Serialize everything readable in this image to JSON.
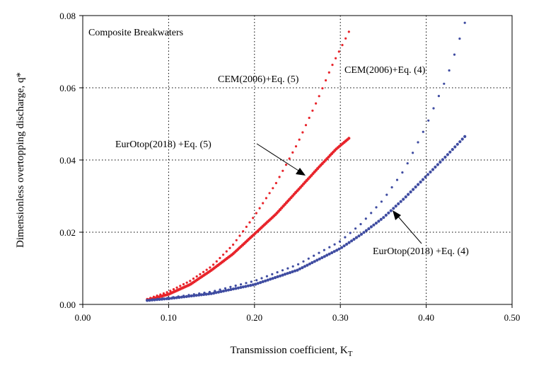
{
  "chart_data": {
    "type": "scatter",
    "title": "Composite Breakwaters",
    "xlabel": "Transmission coefficient, K",
    "xlabel_subscript": "T",
    "ylabel": "Dimensionless overtopping discharge, q*",
    "xlim": [
      0.0,
      0.5
    ],
    "ylim": [
      0.0,
      0.08
    ],
    "x_ticks": [
      "0.00",
      "0.10",
      "0.20",
      "0.30",
      "0.40",
      "0.50"
    ],
    "y_ticks": [
      "0.00",
      "0.02",
      "0.04",
      "0.06",
      "0.08"
    ],
    "grid": true,
    "colors": {
      "red": "#e8242b",
      "blue": "#3f4ca1"
    },
    "series": [
      {
        "name": "CEM(2006)+Eq. (5)",
        "color": "#e8242b",
        "style": "sparse-dots",
        "x": [
          0.075,
          0.1,
          0.125,
          0.15,
          0.175,
          0.2,
          0.225,
          0.25,
          0.275,
          0.29,
          0.31
        ],
        "y": [
          0.0015,
          0.0035,
          0.0065,
          0.0105,
          0.0165,
          0.0245,
          0.0335,
          0.0445,
          0.0575,
          0.066,
          0.0755
        ]
      },
      {
        "name": "EurOtop(2018) +Eq. (5)",
        "color": "#e8242b",
        "style": "dense-dots",
        "x": [
          0.075,
          0.1,
          0.125,
          0.15,
          0.175,
          0.2,
          0.225,
          0.25,
          0.275,
          0.295,
          0.31
        ],
        "y": [
          0.0012,
          0.0028,
          0.0055,
          0.0095,
          0.014,
          0.0195,
          0.025,
          0.0315,
          0.038,
          0.043,
          0.046
        ]
      },
      {
        "name": "CEM(2006)+Eq. (4)",
        "color": "#3f4ca1",
        "style": "sparse-dots",
        "x": [
          0.075,
          0.1,
          0.15,
          0.2,
          0.25,
          0.3,
          0.325,
          0.35,
          0.375,
          0.4,
          0.425,
          0.445
        ],
        "y": [
          0.0012,
          0.0018,
          0.0035,
          0.0065,
          0.011,
          0.0175,
          0.0225,
          0.029,
          0.0375,
          0.0495,
          0.0635,
          0.078
        ]
      },
      {
        "name": "EurOtop(2018) +Eq. (4)",
        "color": "#3f4ca1",
        "style": "dense-dots",
        "x": [
          0.075,
          0.1,
          0.15,
          0.2,
          0.25,
          0.3,
          0.325,
          0.35,
          0.375,
          0.4,
          0.425,
          0.445
        ],
        "y": [
          0.0011,
          0.0016,
          0.003,
          0.0055,
          0.0095,
          0.0155,
          0.0195,
          0.024,
          0.0295,
          0.0355,
          0.0415,
          0.0465
        ]
      }
    ],
    "annotations": [
      {
        "text": "CEM(2006)+Eq. (5)",
        "arrow": false
      },
      {
        "text": "CEM(2006)+Eq. (4)",
        "arrow": false
      },
      {
        "text": "EurOtop(2018) +Eq. (5)",
        "arrow": true
      },
      {
        "text": "EurOtop(2018) +Eq. (4)",
        "arrow": true
      }
    ]
  }
}
